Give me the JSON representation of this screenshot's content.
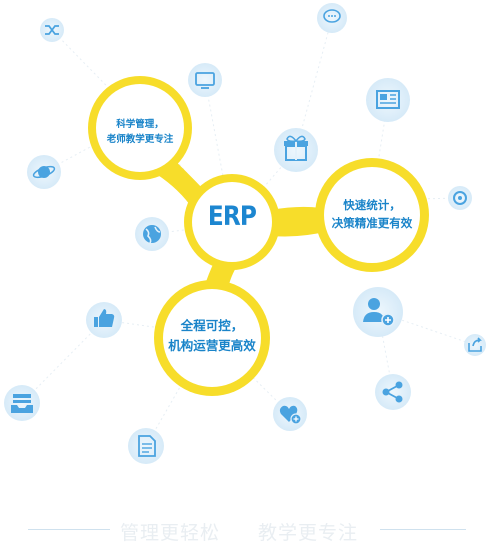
{
  "center": {
    "label": "ERP"
  },
  "bubbles": {
    "science": {
      "line1": "科学管理，",
      "line2": "老师教学更专注"
    },
    "stats": {
      "line1": "快速统计，",
      "line2": "决策精准更有效"
    },
    "control": {
      "line1": "全程可控，",
      "line2": "机构运营更高效"
    }
  },
  "footer": {
    "left": "管理更轻松",
    "right": "教学更专注"
  },
  "colors": {
    "yellow": "#f7dd2a",
    "accent": "#1a84c9",
    "icon_bg": "#e3f1fb",
    "icon_fg": "#4aa3e0"
  },
  "icons": [
    "shuffle-icon",
    "chat-icon",
    "monitor-icon",
    "newspaper-icon",
    "planet-icon",
    "gift-icon",
    "aperture-icon",
    "globe-icon",
    "add-user-icon",
    "thumbs-up-icon",
    "share-box-icon",
    "tray-icon",
    "heart-icon",
    "share-icon",
    "document-icon"
  ]
}
